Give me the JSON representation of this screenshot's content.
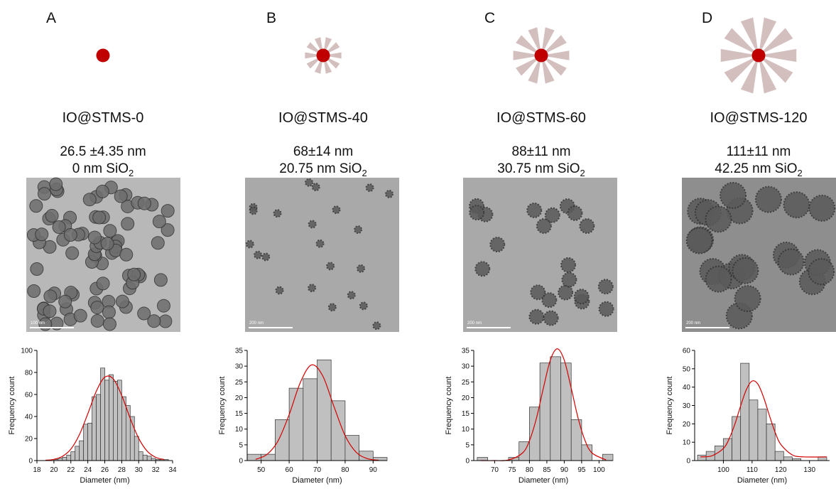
{
  "panels": [
    {
      "letter": "A",
      "name": "IO@STMS-0",
      "size": "26.5 ±4.35 nm",
      "shell": "0 nm SiO",
      "shell_subscript": "2",
      "scale_bar": "100 nm"
    },
    {
      "letter": "B",
      "name": "IO@STMS-40",
      "size": "68±14 nm",
      "shell": "20.75 nm SiO",
      "shell_subscript": "2",
      "scale_bar": "200 nm"
    },
    {
      "letter": "C",
      "name": "IO@STMS-60",
      "size": "88±11 nm",
      "shell": "30.75 nm SiO",
      "shell_subscript": "2",
      "scale_bar": "200 nm"
    },
    {
      "letter": "D",
      "name": "IO@STMS-120",
      "size": "111±11 nm",
      "shell": "42.25 nm SiO",
      "shell_subscript": "2",
      "scale_bar": "200 nm"
    }
  ],
  "chart_data": [
    {
      "type": "histogram",
      "xlabel": "Diameter (nm)",
      "ylabel": "Frequency count",
      "color": "#c0c0c0",
      "bins": [
        20,
        20.5,
        21,
        21.5,
        22,
        22.5,
        23,
        23.5,
        24,
        24.5,
        25,
        25.5,
        26,
        26.5,
        27,
        27.5,
        28,
        28.5,
        29,
        29.5,
        30,
        30.5,
        31,
        31.5,
        32,
        32.5,
        33,
        33.5
      ],
      "values": [
        1,
        2,
        3,
        5,
        8,
        13,
        18,
        33,
        34,
        58,
        60,
        84,
        73,
        78,
        72,
        73,
        58,
        50,
        40,
        22,
        8,
        5,
        4,
        2,
        1,
        1,
        1
      ],
      "xlim": [
        18,
        34
      ],
      "xticks": [
        18,
        20,
        22,
        24,
        26,
        28,
        30,
        32,
        34
      ],
      "ylim": [
        0,
        100
      ],
      "yticks": [
        0,
        20,
        40,
        60,
        80,
        100
      ],
      "fit": {
        "color": "#d40000",
        "x": [
          19,
          20,
          21,
          22,
          23,
          24,
          25,
          26,
          27,
          28,
          29,
          30,
          31,
          32,
          33
        ],
        "values": [
          0.3,
          1.1,
          3.8,
          10.4,
          23.4,
          42.5,
          62.9,
          75.7,
          74.2,
          59.1,
          38.3,
          20.2,
          8.6,
          3.0,
          0.9
        ]
      }
    },
    {
      "type": "histogram",
      "xlabel": "Diameter (nm)",
      "ylabel": "Frequency count",
      "color": "#c0c0c0",
      "bins": [
        45,
        50,
        55,
        60,
        65,
        70,
        75,
        80,
        85,
        90,
        95
      ],
      "values": [
        2,
        2,
        13,
        23,
        26,
        32,
        19,
        8,
        3,
        1
      ],
      "xlim": [
        45,
        95
      ],
      "xticks": [
        50,
        60,
        70,
        80,
        90
      ],
      "ylim": [
        0,
        35
      ],
      "yticks": [
        0,
        5,
        10,
        15,
        20,
        25,
        30,
        35
      ],
      "fit": {
        "color": "#d40000",
        "x": [
          48,
          52,
          56,
          60,
          64,
          68,
          72,
          76,
          80,
          84,
          88,
          92
        ],
        "values": [
          0.4,
          1.9,
          6.2,
          14.6,
          24.8,
          30.4,
          26.9,
          17.2,
          7.9,
          2.6,
          0.6,
          0.1
        ]
      }
    },
    {
      "type": "histogram",
      "xlabel": "Diameter (nm)",
      "ylabel": "Frequency count",
      "color": "#c0c0c0",
      "bins": [
        65,
        68,
        71,
        74,
        77,
        80,
        83,
        86,
        89,
        92,
        95,
        98,
        101,
        104
      ],
      "values": [
        1,
        0,
        0,
        1,
        6,
        17,
        31,
        33,
        31,
        13,
        5,
        0,
        2
      ],
      "xlim": [
        64,
        104
      ],
      "xticks": [
        70,
        75,
        80,
        85,
        90,
        95,
        100
      ],
      "ylim": [
        0,
        35
      ],
      "yticks": [
        0,
        5,
        10,
        15,
        20,
        25,
        30,
        35
      ],
      "fit": {
        "color": "#d40000",
        "x": [
          66,
          70,
          74,
          78,
          80,
          82,
          84,
          86,
          88,
          90,
          92,
          94,
          96,
          98,
          102
        ],
        "values": [
          0,
          0,
          0.2,
          2.4,
          6.3,
          13.4,
          23.0,
          31.9,
          35.5,
          31.9,
          23.0,
          13.4,
          6.3,
          2.4,
          0.2
        ]
      }
    },
    {
      "type": "histogram",
      "xlabel": "Diameter (nm)",
      "ylabel": "Frequency count",
      "color": "#c0c0c0",
      "bins": [
        91,
        94,
        97,
        100,
        103,
        106,
        109,
        112,
        115,
        118,
        121,
        124,
        127,
        130,
        133,
        136
      ],
      "values": [
        3,
        5,
        8,
        12,
        24,
        53,
        33,
        28,
        20,
        5,
        2,
        1,
        0,
        0,
        2
      ],
      "xlim": [
        90,
        137
      ],
      "xticks": [
        100,
        110,
        120,
        130
      ],
      "ylim": [
        0,
        60
      ],
      "yticks": [
        0,
        10,
        20,
        30,
        40,
        50,
        60
      ],
      "fit": {
        "color": "#d40000",
        "x": [
          92,
          96,
          100,
          102,
          104,
          106,
          108,
          110,
          112,
          114,
          116,
          118,
          120,
          124,
          128,
          136
        ],
        "values": [
          2.0,
          2.6,
          6.6,
          11.8,
          19.8,
          29.7,
          38.6,
          43.3,
          41.7,
          34.5,
          24.7,
          15.5,
          8.8,
          3.1,
          2.0,
          2.0
        ]
      }
    }
  ]
}
